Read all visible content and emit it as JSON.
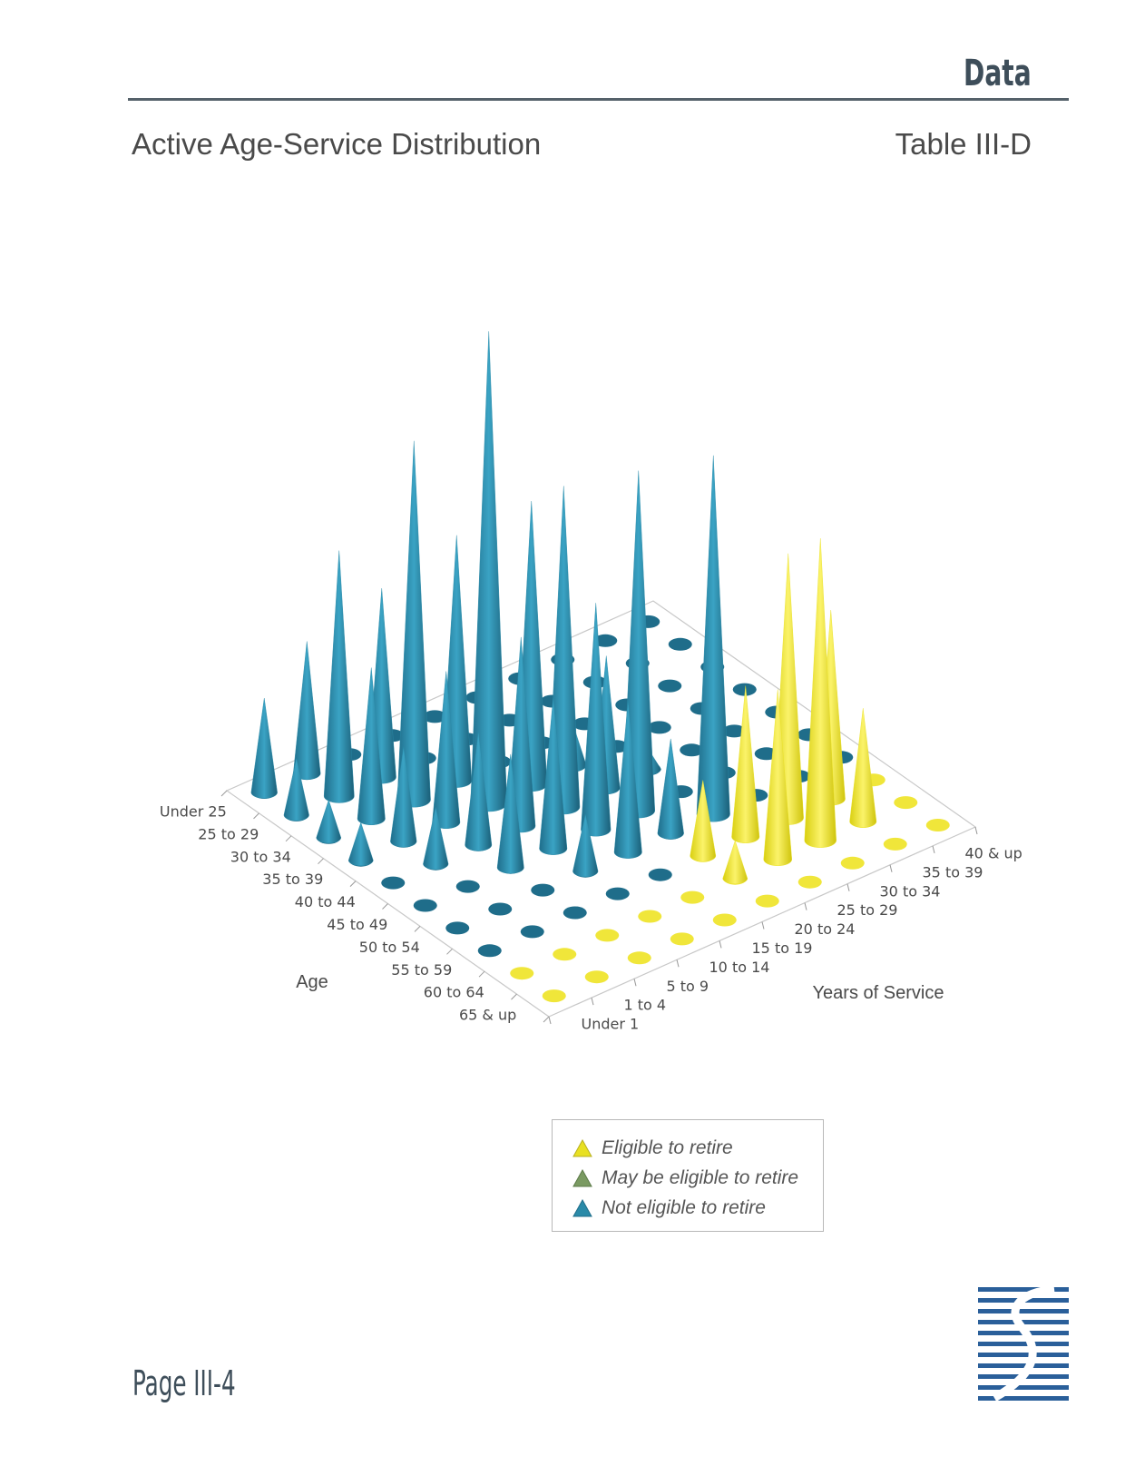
{
  "header": {
    "section": "Data",
    "title": "Active Age-Service Distribution",
    "table_id": "Table III-D"
  },
  "footer": {
    "page": "Page III-4"
  },
  "colors": {
    "eligible": "#e8e022",
    "may_be_eligible": "#7a9a62",
    "not_eligible": "#2a8aa8",
    "rule": "#55616a",
    "logo": "#2a5f9a"
  },
  "chart_data": {
    "type": "3d-cone",
    "xlabel": "Age",
    "ylabel": "Years of Service",
    "age_groups": [
      "Under 25",
      "25 to 29",
      "30 to 34",
      "35 to 39",
      "40 to 44",
      "45 to 49",
      "50 to 54",
      "55 to 59",
      "60 to 64",
      "65 & up"
    ],
    "service_groups": [
      "Under 1",
      "1 to 4",
      "5 to 9",
      "10 to 14",
      "15 to 19",
      "20 to 24",
      "25 to 29",
      "30 to 34",
      "35 to 39",
      "40 & up"
    ],
    "values": [
      [
        5,
        7,
        0,
        0,
        0,
        0,
        0,
        0,
        0,
        0
      ],
      [
        3,
        13,
        10,
        0,
        0,
        0,
        0,
        0,
        0,
        0
      ],
      [
        2,
        8,
        19,
        13,
        0,
        0,
        0,
        0,
        0,
        0
      ],
      [
        2,
        5,
        8,
        25,
        15,
        2,
        0,
        0,
        0,
        0
      ],
      [
        0,
        3,
        6,
        10,
        17,
        7,
        1,
        0,
        0,
        0
      ],
      [
        0,
        0,
        6,
        8,
        12,
        18,
        0,
        0,
        0,
        0
      ],
      [
        0,
        0,
        0,
        3,
        8,
        5,
        19,
        0,
        0,
        0
      ],
      [
        0,
        0,
        0,
        0,
        0,
        4,
        8,
        14,
        10,
        0
      ],
      [
        0,
        0,
        0,
        0,
        0,
        2,
        9,
        16,
        6,
        0
      ],
      [
        0,
        0,
        0,
        0,
        0,
        0,
        0,
        0,
        0,
        0
      ]
    ],
    "eligibility": [
      [
        "not",
        "not",
        "not",
        "not",
        "not",
        "not",
        "not",
        "not",
        "not",
        "not"
      ],
      [
        "not",
        "not",
        "not",
        "not",
        "not",
        "not",
        "not",
        "not",
        "not",
        "not"
      ],
      [
        "not",
        "not",
        "not",
        "not",
        "not",
        "not",
        "not",
        "not",
        "not",
        "not"
      ],
      [
        "not",
        "not",
        "not",
        "not",
        "not",
        "not",
        "not",
        "not",
        "not",
        "not"
      ],
      [
        "not",
        "not",
        "not",
        "not",
        "not",
        "not",
        "not",
        "not",
        "not",
        "not"
      ],
      [
        "not",
        "not",
        "not",
        "not",
        "not",
        "not",
        "not",
        "not",
        "not",
        "not"
      ],
      [
        "not",
        "not",
        "not",
        "not",
        "not",
        "not",
        "not",
        "not",
        "not",
        "not"
      ],
      [
        "not",
        "not",
        "not",
        "not",
        "not",
        "eligible",
        "eligible",
        "eligible",
        "eligible",
        "eligible"
      ],
      [
        "eligible",
        "eligible",
        "eligible",
        "eligible",
        "eligible",
        "eligible",
        "eligible",
        "eligible",
        "eligible",
        "eligible"
      ],
      [
        "eligible",
        "eligible",
        "eligible",
        "eligible",
        "eligible",
        "eligible",
        "eligible",
        "eligible",
        "eligible",
        "eligible"
      ]
    ],
    "legend": [
      {
        "key": "eligible",
        "label": "Eligible to retire"
      },
      {
        "key": "may_be_eligible",
        "label": "May be eligible to retire"
      },
      {
        "key": "not_eligible",
        "label": "Not eligible to retire"
      }
    ],
    "legend_position": "bottom",
    "grid": false
  }
}
